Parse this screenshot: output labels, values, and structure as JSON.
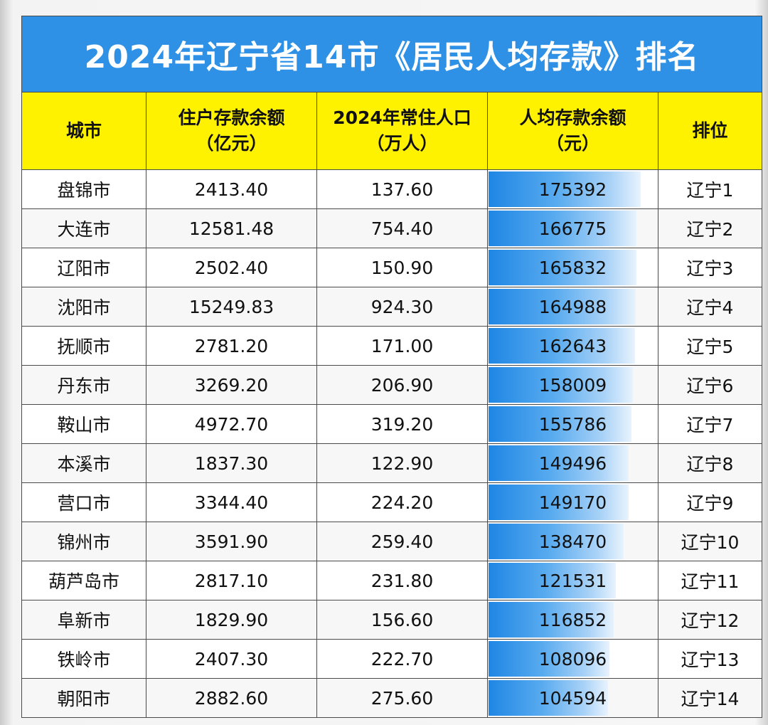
{
  "title": "2024年辽宁省14市《居民人均存款》排名",
  "colors": {
    "title_bg": "#2f91e6",
    "header_bg": "#fff200",
    "bar": "#1f86e4"
  },
  "headers": [
    [
      "城市"
    ],
    [
      "住户存款余额",
      "（亿元）"
    ],
    [
      "2024年常住人口",
      "（万人）"
    ],
    [
      "人均存款余额",
      "（元）"
    ],
    [
      "排位"
    ]
  ],
  "chart_data": {
    "type": "table",
    "title": "2024年辽宁省14市《居民人均存款》排名",
    "columns": [
      "城市",
      "住户存款余额（亿元）",
      "2024年常住人口（万人）",
      "人均存款余额（元）",
      "排位"
    ],
    "rows": [
      {
        "city": "盘锦市",
        "deposit": "2413.40",
        "population": "137.60",
        "per_capita": 175392,
        "rank": "辽宁1"
      },
      {
        "city": "大连市",
        "deposit": "12581.48",
        "population": "754.40",
        "per_capita": 166775,
        "rank": "辽宁2"
      },
      {
        "city": "辽阳市",
        "deposit": "2502.40",
        "population": "150.90",
        "per_capita": 165832,
        "rank": "辽宁3"
      },
      {
        "city": "沈阳市",
        "deposit": "15249.83",
        "population": "924.30",
        "per_capita": 164988,
        "rank": "辽宁4"
      },
      {
        "city": "抚顺市",
        "deposit": "2781.20",
        "population": "171.00",
        "per_capita": 162643,
        "rank": "辽宁5"
      },
      {
        "city": "丹东市",
        "deposit": "3269.20",
        "population": "206.90",
        "per_capita": 158009,
        "rank": "辽宁6"
      },
      {
        "city": "鞍山市",
        "deposit": "4972.70",
        "population": "319.20",
        "per_capita": 155786,
        "rank": "辽宁7"
      },
      {
        "city": "本溪市",
        "deposit": "1837.30",
        "population": "122.90",
        "per_capita": 149496,
        "rank": "辽宁8"
      },
      {
        "city": "营口市",
        "deposit": "3344.40",
        "population": "224.20",
        "per_capita": 149170,
        "rank": "辽宁9"
      },
      {
        "city": "锦州市",
        "deposit": "3591.90",
        "population": "259.40",
        "per_capita": 138470,
        "rank": "辽宁10"
      },
      {
        "city": "葫芦岛市",
        "deposit": "2817.10",
        "population": "231.80",
        "per_capita": 121531,
        "rank": "辽宁11"
      },
      {
        "city": "阜新市",
        "deposit": "1829.90",
        "population": "156.60",
        "per_capita": 116852,
        "rank": "辽宁12"
      },
      {
        "city": "铁岭市",
        "deposit": "2407.30",
        "population": "222.70",
        "per_capita": 108096,
        "rank": "辽宁13"
      },
      {
        "city": "朝阳市",
        "deposit": "2882.60",
        "population": "275.60",
        "per_capita": 104594,
        "rank": "辽宁14"
      }
    ]
  }
}
